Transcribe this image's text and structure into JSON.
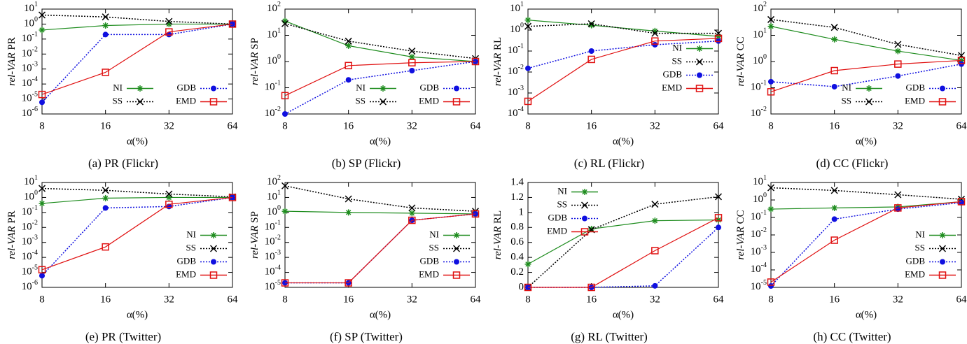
{
  "chart_data": [
    {
      "type": "line",
      "caption": "(a) PR (Flickr)",
      "xlabel": "α(%)",
      "ylabel": "rel-VAR PR",
      "categories": [
        "8",
        "16",
        "32",
        "64"
      ],
      "log_y": true,
      "ylim": [
        1e-06,
        10
      ],
      "yticks": [
        {
          "value": 1e-06,
          "label": "10^-6"
        },
        {
          "value": 1e-05,
          "label": "10^-5"
        },
        {
          "value": 0.0001,
          "label": "10^-4"
        },
        {
          "value": 0.001,
          "label": "10^-3"
        },
        {
          "value": 0.01,
          "label": "10^-2"
        },
        {
          "value": 0.1,
          "label": "10^-1"
        },
        {
          "value": 1,
          "label": "10^0"
        },
        {
          "value": 10,
          "label": "10^1"
        }
      ],
      "legend": "lower right",
      "legend_columns": 2,
      "series": [
        {
          "name": "NI",
          "color": "#1e8c1e",
          "marker": "asterisk",
          "dash": "solid",
          "values": [
            0.4,
            0.8,
            1.0,
            1.0
          ]
        },
        {
          "name": "SS",
          "color": "#000000",
          "marker": "x",
          "dash": "dotted",
          "values": [
            4,
            3,
            1.5,
            1.0
          ]
        },
        {
          "name": "GDB",
          "color": "#1010e0",
          "marker": "circle",
          "dash": "dotted",
          "values": [
            6e-06,
            0.2,
            0.2,
            1.0
          ]
        },
        {
          "name": "EMD",
          "color": "#e01010",
          "marker": "square",
          "dash": "solid",
          "values": [
            2e-05,
            0.0006,
            0.3,
            1.0
          ]
        }
      ]
    },
    {
      "type": "line",
      "caption": "(b) SP (Flickr)",
      "xlabel": "α(%)",
      "ylabel": "rel-VAR SP",
      "categories": [
        "8",
        "16",
        "32",
        "64"
      ],
      "log_y": true,
      "ylim": [
        0.01,
        100
      ],
      "yticks": [
        {
          "value": 0.01,
          "label": "10^-2"
        },
        {
          "value": 0.1,
          "label": "10^-1"
        },
        {
          "value": 1,
          "label": "10^0"
        },
        {
          "value": 10,
          "label": "10^1"
        },
        {
          "value": 100,
          "label": "10^2"
        }
      ],
      "legend": "lower right",
      "legend_columns": 2,
      "series": [
        {
          "name": "NI",
          "color": "#1e8c1e",
          "marker": "asterisk",
          "dash": "solid",
          "values": [
            35,
            4,
            1.5,
            1.0
          ]
        },
        {
          "name": "SS",
          "color": "#000000",
          "marker": "x",
          "dash": "dotted",
          "values": [
            28,
            6,
            2.5,
            1.3
          ]
        },
        {
          "name": "GDB",
          "color": "#1010e0",
          "marker": "circle",
          "dash": "dotted",
          "values": [
            0.01,
            0.2,
            0.45,
            1.0
          ]
        },
        {
          "name": "EMD",
          "color": "#e01010",
          "marker": "square",
          "dash": "solid",
          "values": [
            0.05,
            0.7,
            0.9,
            1.0
          ]
        }
      ]
    },
    {
      "type": "line",
      "caption": "(c) RL (Flickr)",
      "xlabel": "α(%)",
      "ylabel": "rel-VAR RL",
      "categories": [
        "8",
        "16",
        "32",
        "64"
      ],
      "log_y": true,
      "ylim": [
        0.0001,
        10
      ],
      "yticks": [
        {
          "value": 0.0001,
          "label": "10^-4"
        },
        {
          "value": 0.001,
          "label": "10^-3"
        },
        {
          "value": 0.01,
          "label": "10^-2"
        },
        {
          "value": 0.1,
          "label": "10^-1"
        },
        {
          "value": 1,
          "label": "10^0"
        },
        {
          "value": 10,
          "label": "10^1"
        }
      ],
      "legend": "center right",
      "legend_columns": 1,
      "series": [
        {
          "name": "NI",
          "color": "#1e8c1e",
          "marker": "asterisk",
          "dash": "solid",
          "values": [
            3,
            1.7,
            0.9,
            0.5
          ]
        },
        {
          "name": "SS",
          "color": "#000000",
          "marker": "x",
          "dash": "dotted",
          "values": [
            1.5,
            2,
            0.7,
            0.7
          ]
        },
        {
          "name": "GDB",
          "color": "#1010e0",
          "marker": "circle",
          "dash": "dotted",
          "values": [
            0.015,
            0.1,
            0.2,
            0.3
          ]
        },
        {
          "name": "EMD",
          "color": "#e01010",
          "marker": "square",
          "dash": "solid",
          "values": [
            0.0004,
            0.04,
            0.3,
            0.4
          ]
        }
      ]
    },
    {
      "type": "line",
      "caption": "(d) CC (Flickr)",
      "xlabel": "α(%)",
      "ylabel": "rel-VAR CC",
      "categories": [
        "8",
        "16",
        "32",
        "64"
      ],
      "log_y": true,
      "ylim": [
        0.01,
        100
      ],
      "yticks": [
        {
          "value": 0.01,
          "label": "10^-2"
        },
        {
          "value": 0.1,
          "label": "10^-1"
        },
        {
          "value": 1,
          "label": "10^0"
        },
        {
          "value": 10,
          "label": "10^1"
        },
        {
          "value": 100,
          "label": "10^2"
        }
      ],
      "legend": "lower right",
      "legend_columns": 2,
      "series": [
        {
          "name": "NI",
          "color": "#1e8c1e",
          "marker": "asterisk",
          "dash": "solid",
          "values": [
            22,
            7,
            2.5,
            1.1
          ]
        },
        {
          "name": "SS",
          "color": "#000000",
          "marker": "x",
          "dash": "dotted",
          "values": [
            40,
            20,
            4.5,
            1.7
          ]
        },
        {
          "name": "GDB",
          "color": "#1010e0",
          "marker": "circle",
          "dash": "dotted",
          "values": [
            0.17,
            0.11,
            0.28,
            0.8
          ]
        },
        {
          "name": "EMD",
          "color": "#e01010",
          "marker": "square",
          "dash": "solid",
          "values": [
            0.07,
            0.45,
            0.8,
            1.1
          ]
        }
      ]
    },
    {
      "type": "line",
      "caption": "(e) PR (Twitter)",
      "xlabel": "α(%)",
      "ylabel": "rel-VAR PR",
      "categories": [
        "8",
        "16",
        "32",
        "64"
      ],
      "log_y": true,
      "ylim": [
        1e-06,
        10
      ],
      "yticks": [
        {
          "value": 1e-06,
          "label": "10^-6"
        },
        {
          "value": 1e-05,
          "label": "10^-5"
        },
        {
          "value": 0.0001,
          "label": "10^-4"
        },
        {
          "value": 0.001,
          "label": "10^-3"
        },
        {
          "value": 0.01,
          "label": "10^-2"
        },
        {
          "value": 0.1,
          "label": "10^-1"
        },
        {
          "value": 1,
          "label": "10^0"
        },
        {
          "value": 10,
          "label": "10^1"
        }
      ],
      "legend": "lower right",
      "legend_columns": 1,
      "series": [
        {
          "name": "NI",
          "color": "#1e8c1e",
          "marker": "asterisk",
          "dash": "solid",
          "values": [
            0.4,
            0.9,
            1.0,
            1.0
          ]
        },
        {
          "name": "SS",
          "color": "#000000",
          "marker": "x",
          "dash": "dotted",
          "values": [
            4,
            3,
            1.7,
            1.1
          ]
        },
        {
          "name": "GDB",
          "color": "#1010e0",
          "marker": "circle",
          "dash": "dotted",
          "values": [
            6e-06,
            0.2,
            0.25,
            1.0
          ]
        },
        {
          "name": "EMD",
          "color": "#e01010",
          "marker": "square",
          "dash": "solid",
          "values": [
            1.5e-05,
            0.0005,
            0.35,
            1.0
          ]
        }
      ]
    },
    {
      "type": "line",
      "caption": "(f) SP (Twitter)",
      "xlabel": "α(%)",
      "ylabel": "rel-VAR SP",
      "categories": [
        "8",
        "16",
        "32",
        "64"
      ],
      "log_y": true,
      "ylim": [
        1e-05,
        100
      ],
      "yticks": [
        {
          "value": 1e-05,
          "label": "10^-5"
        },
        {
          "value": 0.0001,
          "label": "10^-4"
        },
        {
          "value": 0.001,
          "label": "10^-3"
        },
        {
          "value": 0.01,
          "label": "10^-2"
        },
        {
          "value": 0.1,
          "label": "10^-1"
        },
        {
          "value": 1,
          "label": "10^0"
        },
        {
          "value": 10,
          "label": "10^1"
        },
        {
          "value": 100,
          "label": "10^2"
        }
      ],
      "legend": "lower right",
      "legend_columns": 1,
      "series": [
        {
          "name": "NI",
          "color": "#1e8c1e",
          "marker": "asterisk",
          "dash": "solid",
          "values": [
            1.2,
            1.0,
            0.9,
            0.8
          ]
        },
        {
          "name": "SS",
          "color": "#000000",
          "marker": "x",
          "dash": "dotted",
          "values": [
            60,
            8,
            2,
            1.2
          ]
        },
        {
          "name": "GDB",
          "color": "#1010e0",
          "marker": "circle",
          "dash": "dotted",
          "values": [
            2e-05,
            2e-05,
            0.3,
            0.8
          ]
        },
        {
          "name": "EMD",
          "color": "#e01010",
          "marker": "square",
          "dash": "solid",
          "values": [
            2e-05,
            2e-05,
            0.3,
            0.8
          ]
        }
      ]
    },
    {
      "type": "line",
      "caption": "(g) RL (Twitter)",
      "xlabel": "α(%)",
      "ylabel": "rel-VAR RL",
      "categories": [
        "8",
        "16",
        "32",
        "64"
      ],
      "log_y": false,
      "ylim": [
        0,
        1.4
      ],
      "yticks": [
        0,
        0.2,
        0.4,
        0.6,
        0.8,
        1,
        1.2,
        1.4
      ],
      "legend": "upper left",
      "legend_columns": 1,
      "series": [
        {
          "name": "NI",
          "color": "#1e8c1e",
          "marker": "asterisk",
          "dash": "solid",
          "values": [
            0.31,
            0.78,
            0.89,
            0.9
          ]
        },
        {
          "name": "SS",
          "color": "#000000",
          "marker": "x",
          "dash": "dotted",
          "values": [
            0,
            0.77,
            1.11,
            1.21
          ]
        },
        {
          "name": "GDB",
          "color": "#1010e0",
          "marker": "circle",
          "dash": "dotted",
          "values": [
            0,
            0,
            0.02,
            0.8
          ]
        },
        {
          "name": "EMD",
          "color": "#e01010",
          "marker": "square",
          "dash": "solid",
          "values": [
            0,
            0,
            0.49,
            0.93
          ]
        }
      ]
    },
    {
      "type": "line",
      "caption": "(h) CC (Twitter)",
      "xlabel": "α(%)",
      "ylabel": "rel-VAR CC",
      "categories": [
        "8",
        "16",
        "32",
        "64"
      ],
      "log_y": true,
      "ylim": [
        1e-05,
        10
      ],
      "yticks": [
        {
          "value": 1e-05,
          "label": "10^-5"
        },
        {
          "value": 0.0001,
          "label": "10^-4"
        },
        {
          "value": 0.001,
          "label": "10^-3"
        },
        {
          "value": 0.01,
          "label": "10^-2"
        },
        {
          "value": 0.1,
          "label": "10^-1"
        },
        {
          "value": 1,
          "label": "10^0"
        },
        {
          "value": 10,
          "label": "10^1"
        }
      ],
      "legend": "lower right",
      "legend_columns": 1,
      "series": [
        {
          "name": "NI",
          "color": "#1e8c1e",
          "marker": "asterisk",
          "dash": "solid",
          "values": [
            0.3,
            0.35,
            0.4,
            0.8
          ]
        },
        {
          "name": "SS",
          "color": "#000000",
          "marker": "x",
          "dash": "dotted",
          "values": [
            5,
            3.5,
            2,
            1.1
          ]
        },
        {
          "name": "GDB",
          "color": "#1010e0",
          "marker": "circle",
          "dash": "dotted",
          "values": [
            1.2e-05,
            0.08,
            0.3,
            0.7
          ]
        },
        {
          "name": "EMD",
          "color": "#e01010",
          "marker": "square",
          "dash": "solid",
          "values": [
            2e-05,
            0.005,
            0.35,
            0.8
          ]
        }
      ]
    }
  ]
}
